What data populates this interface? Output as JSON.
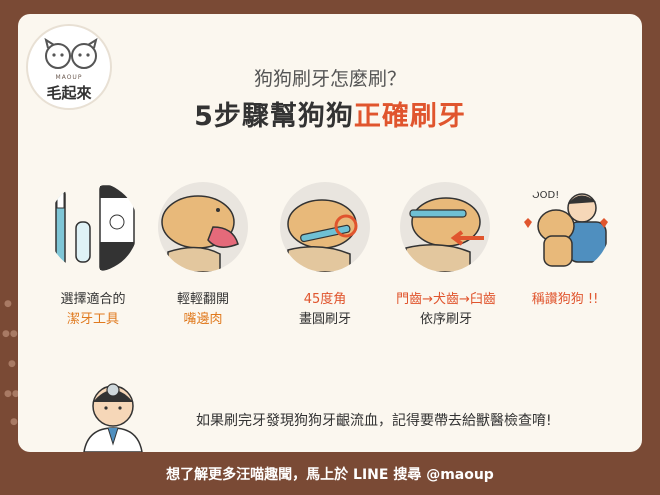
{
  "logo": {
    "subtitle": "MAOUP",
    "name": "毛起來"
  },
  "header": {
    "subtitle": "狗狗刷牙怎麼刷？",
    "title_prefix": "5步驟幫狗狗",
    "title_highlight": "正確刷牙"
  },
  "steps": [
    {
      "line1": "選擇適合的",
      "line2": "潔牙工具",
      "icon": "toothbrush-and-toothpaste"
    },
    {
      "line1": "輕輕翻開",
      "line2": "嘴邊肉",
      "icon": "dog-mouth-open"
    },
    {
      "line1": "45度角",
      "line2": "畫圓刷牙",
      "icon": "dog-brushing-circle"
    },
    {
      "line1": "門齒→犬齒→臼齒",
      "line2": "依序刷牙",
      "icon": "dog-brushing-order"
    },
    {
      "line1": "稱讚狗狗",
      "line2": "!!",
      "icon": "boy-hugging-dog",
      "bubble": "GOOD!"
    }
  ],
  "tip": {
    "text": "如果刷完牙發現狗狗牙齦流血，記得要帶去給獸醫檢查唷!"
  },
  "footer": {
    "text": "想了解更多汪喵趣聞，馬上於 LINE 搜尋 @maoup"
  },
  "colors": {
    "background": "#7a4a35",
    "card": "#fbf7ef",
    "accent_red": "#e0552e",
    "accent_orange": "#e07a1f"
  }
}
